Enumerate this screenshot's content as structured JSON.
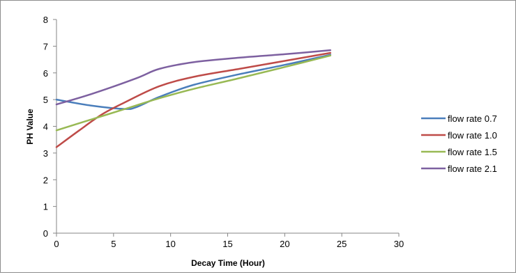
{
  "chart_data": {
    "type": "line",
    "title": "",
    "xlabel": "Decay Time (Hour)",
    "ylabel": "PH Value",
    "xlim": [
      0,
      30
    ],
    "ylim": [
      0,
      8
    ],
    "x_ticks": [
      0,
      5,
      10,
      15,
      20,
      25,
      30
    ],
    "y_ticks": [
      0,
      1,
      2,
      3,
      4,
      5,
      6,
      7,
      8
    ],
    "grid": false,
    "legend_position": "right",
    "series": [
      {
        "name": "flow rate 0.7",
        "color": "#4a7ebb",
        "points": [
          [
            0,
            5.0
          ],
          [
            3,
            4.78
          ],
          [
            6,
            4.65
          ],
          [
            7,
            4.72
          ],
          [
            9,
            5.1
          ],
          [
            12,
            5.55
          ],
          [
            16,
            5.95
          ],
          [
            20,
            6.3
          ],
          [
            24,
            6.68
          ]
        ]
      },
      {
        "name": "flow rate 1.0",
        "color": "#be4b48",
        "points": [
          [
            0,
            3.22
          ],
          [
            2,
            3.85
          ],
          [
            4,
            4.45
          ],
          [
            6,
            4.9
          ],
          [
            9,
            5.5
          ],
          [
            12,
            5.85
          ],
          [
            16,
            6.15
          ],
          [
            20,
            6.45
          ],
          [
            24,
            6.75
          ]
        ]
      },
      {
        "name": "flow rate 1.5",
        "color": "#98b954",
        "points": [
          [
            0,
            3.85
          ],
          [
            3,
            4.25
          ],
          [
            6,
            4.65
          ],
          [
            9,
            5.05
          ],
          [
            12,
            5.4
          ],
          [
            16,
            5.8
          ],
          [
            20,
            6.22
          ],
          [
            24,
            6.65
          ]
        ]
      },
      {
        "name": "flow rate 2.1",
        "color": "#7d60a0",
        "points": [
          [
            0,
            4.82
          ],
          [
            3,
            5.2
          ],
          [
            7,
            5.8
          ],
          [
            9,
            6.15
          ],
          [
            12,
            6.4
          ],
          [
            16,
            6.57
          ],
          [
            20,
            6.7
          ],
          [
            24,
            6.85
          ]
        ]
      }
    ]
  }
}
